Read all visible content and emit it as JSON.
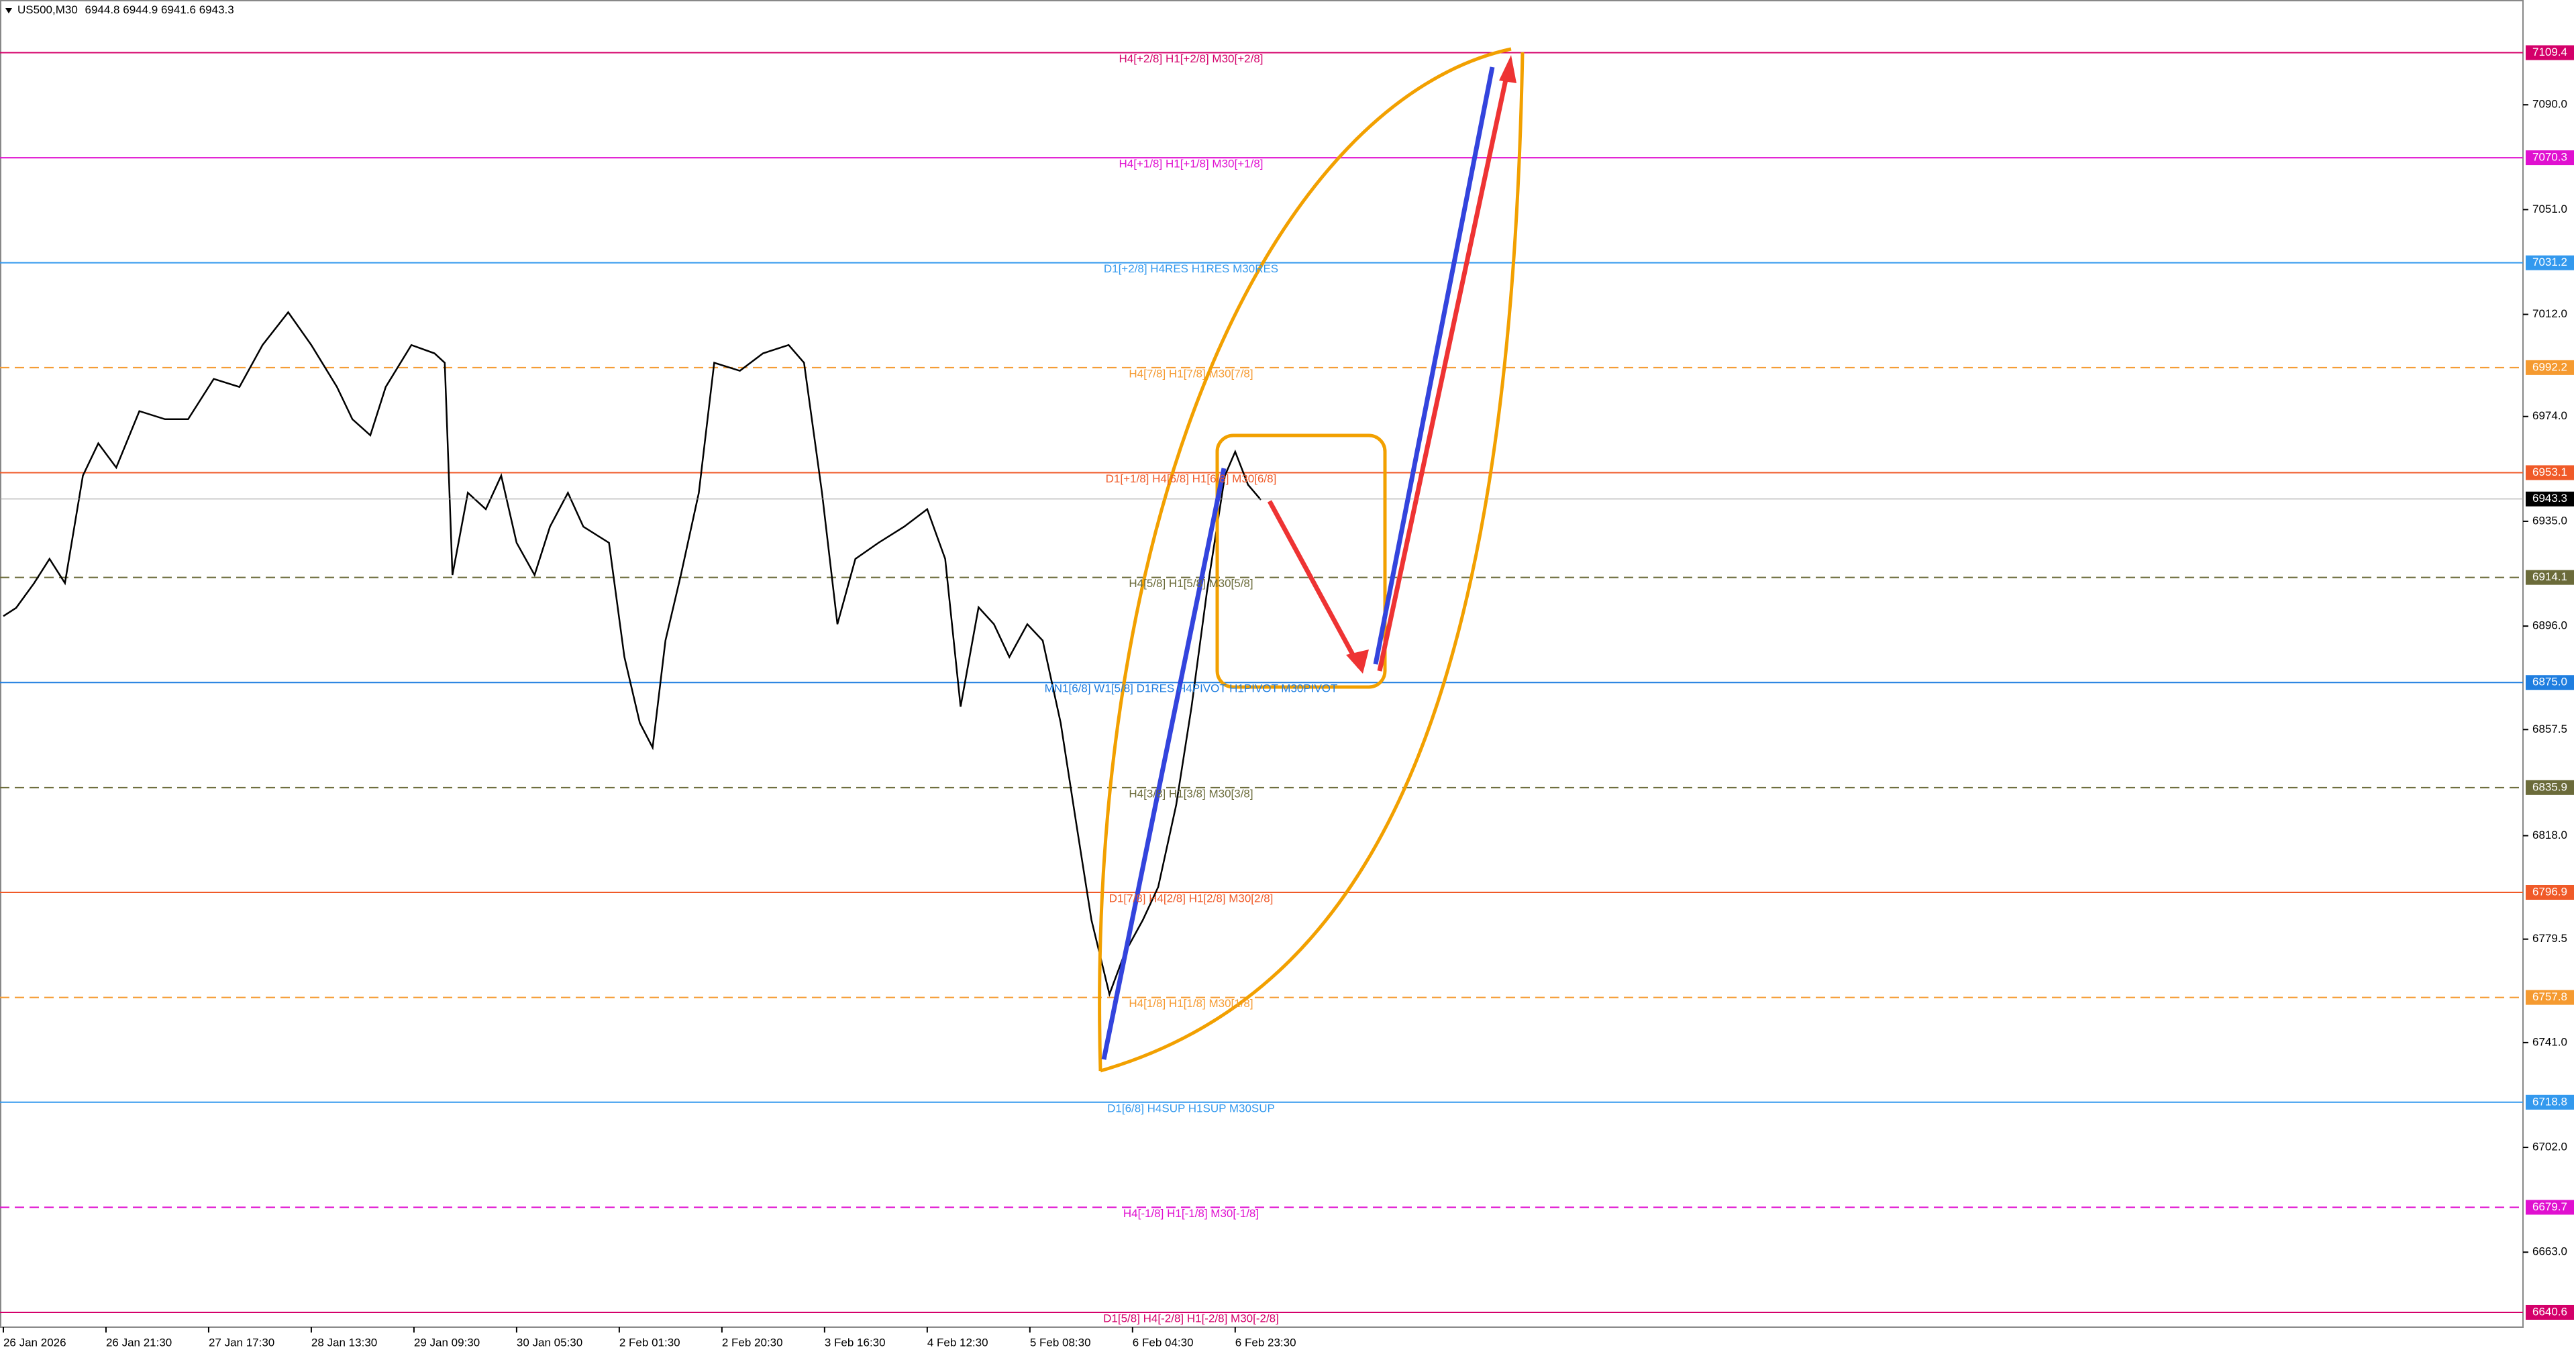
{
  "chart_data": {
    "type": "line",
    "title": "US500,M30",
    "ohlc": [
      6944.8,
      6944.9,
      6941.6,
      6943.3
    ],
    "series": [
      {
        "name": "US500",
        "color": "#000000",
        "x": [
          0,
          5,
          12,
          18,
          24,
          31,
          37,
          44,
          53,
          63,
          72,
          82,
          92,
          101,
          111,
          120,
          130,
          136,
          143,
          149,
          159,
          168,
          172,
          175,
          181,
          188,
          194,
          200,
          207,
          213,
          220,
          226,
          236,
          242,
          248,
          253,
          258,
          264,
          271,
          277,
          287,
          296,
          306,
          312,
          319,
          325,
          332,
          341,
          351,
          360,
          367,
          373,
          380,
          386,
          392,
          399,
          405,
          412,
          418,
          424,
          431,
          437,
          444,
          450,
          457,
          463,
          469,
          476,
          480,
          485,
          490
        ],
        "values": [
          6899.7,
          6902.8,
          6912,
          6921,
          6912,
          6952,
          6964,
          6955,
          6976,
          6973,
          6973,
          6988,
          6985,
          7000.6,
          7012.8,
          7000.6,
          6985,
          6973,
          6967,
          6985,
          7000.6,
          6997.5,
          6994,
          6915,
          6945.6,
          6939.5,
          6952,
          6927,
          6915,
          6933,
          6945.6,
          6933,
          6927,
          6884.5,
          6860,
          6850.8,
          6890.6,
          6915,
          6945.6,
          6994,
          6991,
          6997.5,
          7000.6,
          6994,
          6945.6,
          6896.7,
          6921,
          6927,
          6933,
          6939.5,
          6921,
          6866,
          6903,
          6896.7,
          6884.5,
          6896.7,
          6890.6,
          6860,
          6823,
          6786.6,
          6759,
          6774.4,
          6786.6,
          6798.9,
          6829.4,
          6866,
          6908.9,
          6952,
          6960.9,
          6948.6,
          6943
        ]
      }
    ],
    "xlim": [
      -1.3,
      981.8
    ],
    "ylim": [
      6635.1,
      7129.0
    ],
    "xticks": [
      {
        "value": 0,
        "label": "26 Jan 2026"
      },
      {
        "value": 40,
        "label": "26 Jan 21:30"
      },
      {
        "value": 80,
        "label": "27 Jan 17:30"
      },
      {
        "value": 120,
        "label": "28 Jan 13:30"
      },
      {
        "value": 160,
        "label": "29 Jan 09:30"
      },
      {
        "value": 200,
        "label": "30 Jan 05:30"
      },
      {
        "value": 240,
        "label": "2 Feb 01:30"
      },
      {
        "value": 280,
        "label": "2 Feb 20:30"
      },
      {
        "value": 320,
        "label": "3 Feb 16:30"
      },
      {
        "value": 360,
        "label": "4 Feb 12:30"
      },
      {
        "value": 400,
        "label": "5 Feb 08:30"
      },
      {
        "value": 440,
        "label": "6 Feb 04:30"
      },
      {
        "value": 480,
        "label": "6 Feb 23:30"
      }
    ],
    "yticks": [
      {
        "value": 7090,
        "label": "7090.0"
      },
      {
        "value": 7051,
        "label": "7051.0"
      },
      {
        "value": 7012,
        "label": "7012.0"
      },
      {
        "value": 6974,
        "label": "6974.0"
      },
      {
        "value": 6935,
        "label": "6935.0"
      },
      {
        "value": 6896,
        "label": "6896.0"
      },
      {
        "value": 6857.5,
        "label": "6857.5"
      },
      {
        "value": 6818,
        "label": "6818.0"
      },
      {
        "value": 6779.5,
        "label": "6779.5"
      },
      {
        "value": 6741,
        "label": "6741.0"
      },
      {
        "value": 6702,
        "label": "6702.0"
      },
      {
        "value": 6663,
        "label": "6663.0"
      }
    ],
    "levels": [
      {
        "name": "H4[+2/8] H1[+2/8] M30[+2/8]",
        "value": 7109.4,
        "value_label": "7109.4",
        "color": "#d4006a",
        "dashed": false
      },
      {
        "name": "H4[+1/8] H1[+1/8] M30[+1/8]",
        "value": 7070.3,
        "value_label": "7070.3",
        "color": "#e010d0",
        "dashed": false
      },
      {
        "name": "D1[+2/8] H4RES H1RES M30RES",
        "value": 7031.2,
        "value_label": "7031.2",
        "color": "#3399ee",
        "dashed": false
      },
      {
        "name": "H4[7/8] H1[7/8] M30[7/8]",
        "value": 6992.2,
        "value_label": "6992.2",
        "color": "#f59a30",
        "dashed": true
      },
      {
        "name": "D1[+1/8] H4[6/8] H1[6/8] M30[6/8]",
        "value": 6953.1,
        "value_label": "6953.1",
        "color": "#f05a28",
        "dashed": false
      },
      {
        "name": "H4[5/8] H1[5/8] M30[5/8]",
        "value": 6914.1,
        "value_label": "6914.1",
        "color": "#6b6b3a",
        "dashed": true
      },
      {
        "name": "MN1[6/8] W1[5/8] D1RES H4PIVOT H1PIVOT M30PIVOT",
        "value": 6875.0,
        "value_label": "6875.0",
        "color": "#1f7ee0",
        "dashed": false
      },
      {
        "name": "H4[3/8] H1[3/8] M30[3/8]",
        "value": 6835.9,
        "value_label": "6835.9",
        "color": "#6b6b3a",
        "dashed": true
      },
      {
        "name": "D1[7/8] H4[2/8] H1[2/8] M30[2/8]",
        "value": 6796.9,
        "value_label": "6796.9",
        "color": "#f05a28",
        "dashed": false
      },
      {
        "name": "H4[1/8] H1[1/8] M30[1/8]",
        "value": 6757.8,
        "value_label": "6757.8",
        "color": "#f59a30",
        "dashed": true
      },
      {
        "name": "D1[6/8] H4SUP H1SUP M30SUP",
        "value": 6718.8,
        "value_label": "6718.8",
        "color": "#3399ee",
        "dashed": false
      },
      {
        "name": "H4[-1/8] H1[-1/8] M30[-1/8]",
        "value": 6679.7,
        "value_label": "6679.7",
        "color": "#e010d0",
        "dashed": true
      },
      {
        "name": "D1[5/8] H4[-2/8] H1[-2/8] M30[-2/8]",
        "value": 6640.6,
        "value_label": "6640.6",
        "color": "#d4006a",
        "dashed": false
      }
    ],
    "current_price": {
      "value": 6943.3,
      "label": "6943.3"
    }
  }
}
